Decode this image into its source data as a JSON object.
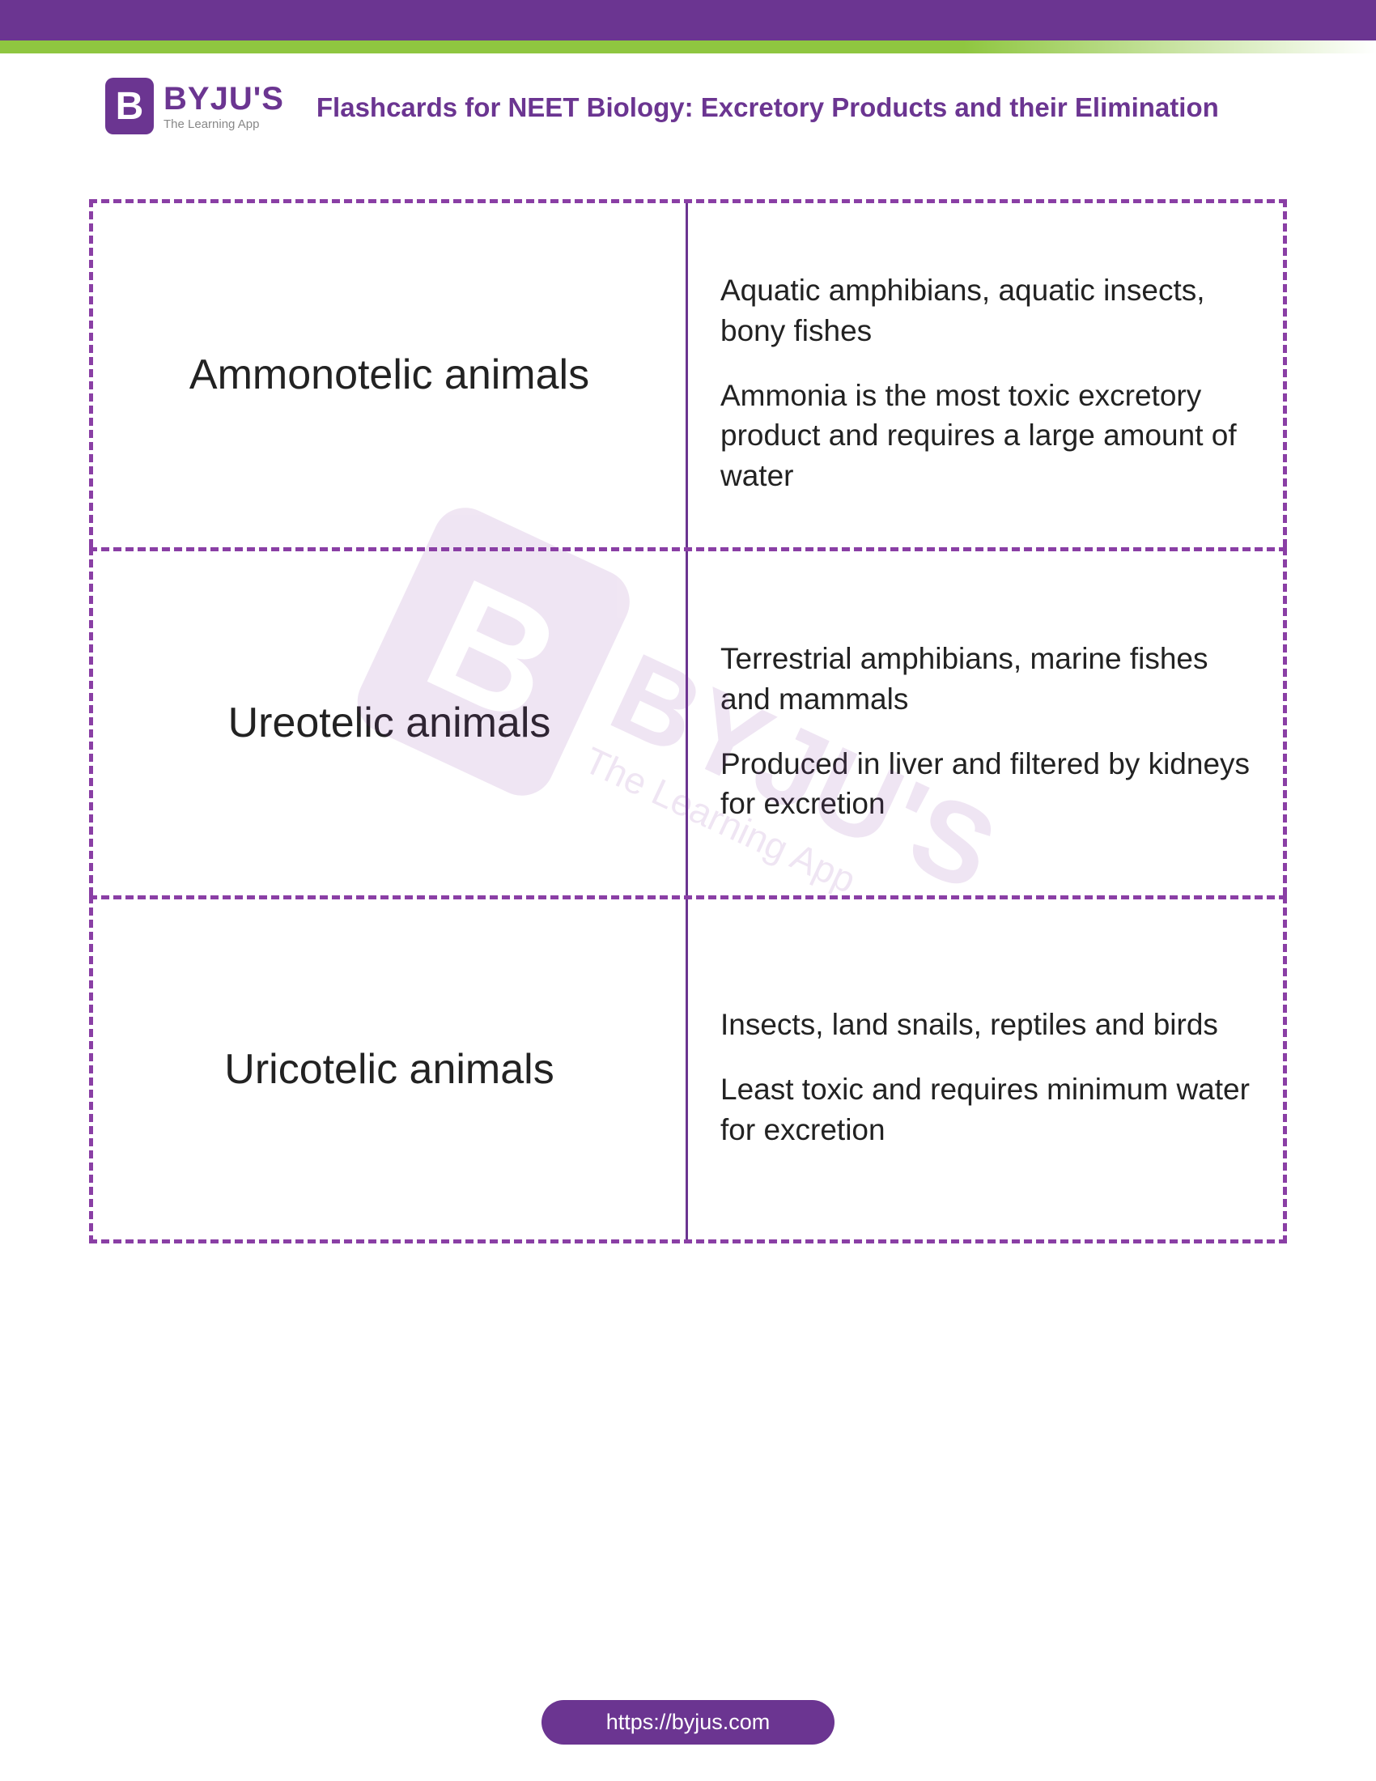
{
  "logo": {
    "badge_letter": "B",
    "name": "BYJU'S",
    "tagline": "The Learning App"
  },
  "page_title": "Flashcards for NEET Biology: Excretory Products and their Elimination",
  "cards": [
    {
      "term": "Ammonotelic animals",
      "details": [
        "Aquatic amphibians, aquatic insects, bony fishes",
        "Ammonia is the most toxic excretory product and requires a large amount of water"
      ]
    },
    {
      "term": "Ureotelic animals",
      "details": [
        "Terrestrial amphibians, marine fishes and mammals",
        "Produced in liver and filtered by kidneys for excretion"
      ]
    },
    {
      "term": "Uricotelic animals",
      "details": [
        "Insects, land snails, reptiles and birds",
        "Least toxic and requires minimum water for excretion"
      ]
    }
  ],
  "watermark": {
    "badge_letter": "B",
    "name": "BYJU'S",
    "tagline": "The Learning App"
  },
  "footer_url": "https://byjus.com",
  "colors": {
    "primary": "#6b3591",
    "dashed_border": "#8a3fa5",
    "green": "#8fc640",
    "text": "#222222"
  }
}
